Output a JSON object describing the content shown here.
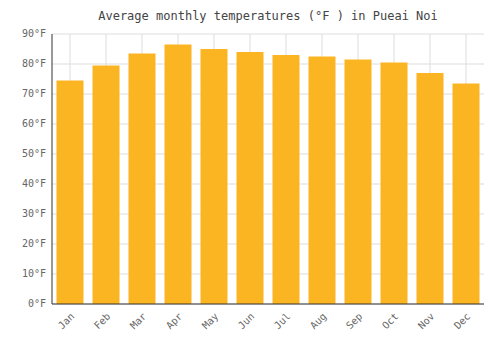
{
  "chart_data": {
    "type": "bar",
    "title": "Average monthly temperatures (°F ) in Pueai Noi",
    "categories": [
      "Jan",
      "Feb",
      "Mar",
      "Apr",
      "May",
      "Jun",
      "Jul",
      "Aug",
      "Sep",
      "Oct",
      "Nov",
      "Dec"
    ],
    "values": [
      74.5,
      79.5,
      83.5,
      86.5,
      85.0,
      84.0,
      83.0,
      82.5,
      81.5,
      80.5,
      77.0,
      73.5
    ],
    "color": "#FBB522",
    "ylim": [
      0,
      90
    ],
    "yticks": [
      {
        "value": 0,
        "label": "0°F"
      },
      {
        "value": 10,
        "label": "10°F"
      },
      {
        "value": 20,
        "label": "20°F"
      },
      {
        "value": 30,
        "label": "30°F"
      },
      {
        "value": 40,
        "label": "40°F"
      },
      {
        "value": 50,
        "label": "50°F"
      },
      {
        "value": 60,
        "label": "60°F"
      },
      {
        "value": 70,
        "label": "70°F"
      },
      {
        "value": 80,
        "label": "80°F"
      },
      {
        "value": 90,
        "label": "90°F"
      }
    ],
    "grid": true
  }
}
